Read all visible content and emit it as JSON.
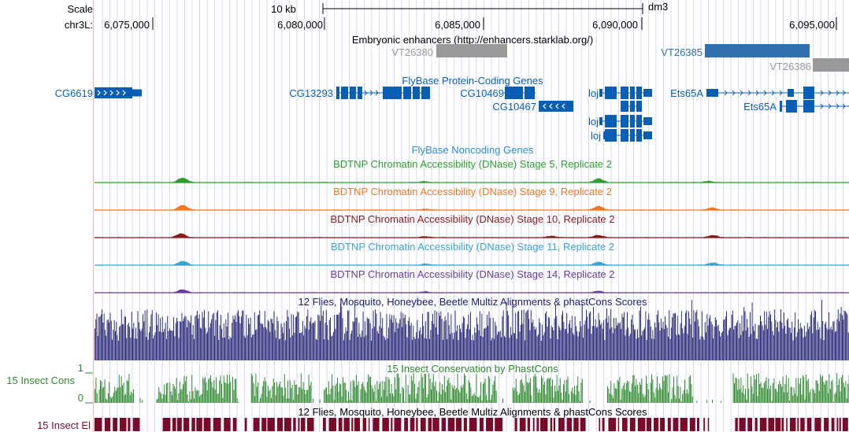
{
  "header": {
    "scale_label": "Scale",
    "chrom_label": "chr3L:",
    "scale_bar_label": "10 kb",
    "assembly": "dm3",
    "positions": [
      "6,075,000",
      "6,080,000",
      "6,085,000",
      "6,090,000",
      "6,095,000"
    ]
  },
  "tracks": {
    "enhancers": {
      "title": "Embryonic enhancers (http://enhancers.starklab.org/)",
      "items": [
        "VT26380",
        "VT26385",
        "VT26386"
      ]
    },
    "protein_coding": {
      "title": "FlyBase Protein-Coding Genes",
      "genes": [
        "CG6619",
        "CG13293",
        "CG10469",
        "CG10467",
        "loj",
        "loj",
        "loj",
        "Ets65A",
        "Ets65A"
      ]
    },
    "noncoding": {
      "title": "FlyBase Noncoding Genes"
    },
    "dnase": [
      {
        "title": "BDTNP Chromatin Accessibility (DNase) Stage 5, Replicate 2",
        "color": "#2ca02c"
      },
      {
        "title": "BDTNP Chromatin Accessibility (DNase) Stage 9, Replicate 2",
        "color": "#f07820"
      },
      {
        "title": "BDTNP Chromatin Accessibility (DNase) Stage 10, Replicate 2",
        "color": "#8b1a1a"
      },
      {
        "title": "BDTNP Chromatin Accessibility (DNase) Stage 11, Replicate 2",
        "color": "#3ba3d0"
      },
      {
        "title": "BDTNP Chromatin Accessibility (DNase) Stage 14, Replicate 2",
        "color": "#6a3d9a"
      }
    ],
    "multiz": {
      "title": "12 Flies, Mosquito, Honeybee, Beetle Multiz Alignments & phastCons Scores",
      "color": "#1a1a6e"
    },
    "phastcons": {
      "title": "15 Insect Conservation by PhastCons",
      "side_label": "15 Insect Cons",
      "axis_max": "1",
      "axis_min": "0",
      "color": "#2e8b2e"
    },
    "elements": {
      "title": "12 Flies, Mosquito, Honeybee, Beetle Multiz Alignments & phastCons Scores",
      "side_label": "15 Insect El",
      "color": "#7a0a2a"
    }
  },
  "colors": {
    "gene_blue": "#0a5fb4",
    "enhancer_gray": "#999999",
    "enhancer_blue": "#2f6fae",
    "grid_line": "#d6d6ff",
    "left_border": "#ffb0b0"
  }
}
